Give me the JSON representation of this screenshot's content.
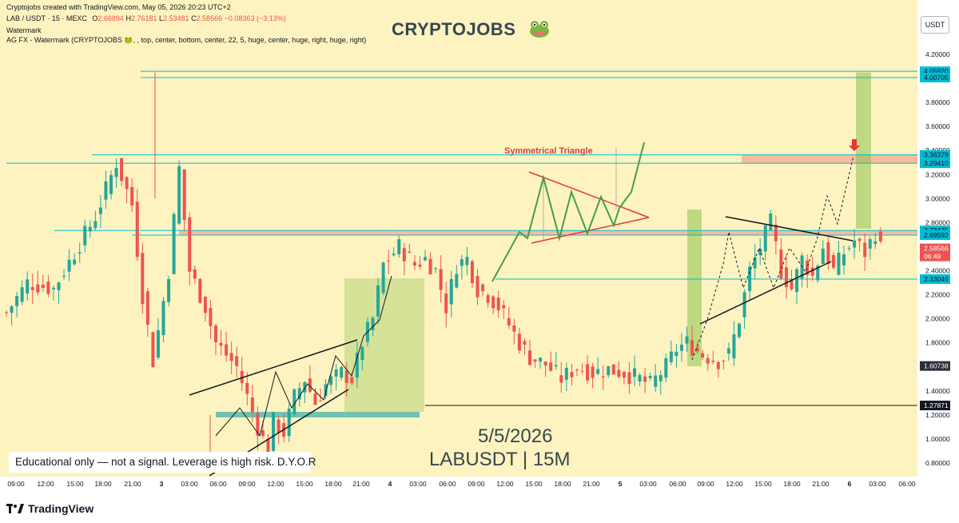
{
  "header": {
    "credit": "Cryptojobs created with TradingView.com, May 05, 2026 20:23 UTC+2",
    "symbol_line": "LAB / USDT · 15 · MEXC",
    "ohlc": {
      "o_label": "O",
      "o": "2.66894",
      "h_label": "H",
      "h": "2.76181",
      "l_label": "L",
      "l": "2.53481",
      "c_label": "C",
      "c": "2.58566",
      "change": "−0.08363 (−3.13%)"
    },
    "watermark_label": "Watermark",
    "indicator_line": "AG FX - Watermark (CRYPTOJOBS 🐸, , top, center, bottom, center, 22, 5, huge, center, huge, right, huge, right)",
    "brand_title": "CRYPTOJOBS",
    "currency": "USDT"
  },
  "annotations": {
    "pattern_label": "Symmetrical Triangle",
    "date": "5/5/2026",
    "pair_timeframe": "LABUSDT | 15M",
    "disclaimer": "Educational only — not a signal. Leverage is high risk. D.Y.O.R"
  },
  "footer": {
    "logo_text": "TradingView"
  },
  "colors": {
    "background": "#fdf3c0",
    "candle_up": "#26a69a",
    "candle_down": "#ef5350",
    "level_line": "#00bcd4",
    "zone_red": "#f8a890",
    "zone_green": "#8bc34a",
    "pattern_green": "#43a047",
    "pattern_red": "#e53935",
    "price_label": "#ef5350",
    "dark_label": "#2a2e39"
  },
  "chart_data": {
    "type": "candlestick",
    "symbol": "LAB / USDT",
    "timeframe": "15",
    "exchange": "MEXC",
    "ylim": [
      0.7,
      4.3
    ],
    "y_ticks": [
      "0.80000",
      "1.00000",
      "1.20000",
      "1.40000",
      "1.60000",
      "1.80000",
      "2.00000",
      "2.20000",
      "2.40000",
      "2.60000",
      "2.80000",
      "3.00000",
      "3.20000",
      "3.40000",
      "3.60000",
      "3.80000",
      "4.00000",
      "4.20000"
    ],
    "x_ticks": [
      "09:00",
      "12:00",
      "15:00",
      "18:00",
      "21:00",
      "3",
      "03:00",
      "06:00",
      "09:00",
      "12:00",
      "15:00",
      "18:00",
      "21:00",
      "4",
      "03:00",
      "06:00",
      "09:00",
      "12:00",
      "15:00",
      "18:00",
      "21:00",
      "5",
      "03:00",
      "06:00",
      "09:00",
      "12:00",
      "15:00",
      "18:00",
      "21:00",
      "6",
      "03:00",
      "06:00"
    ],
    "close_path": [
      {
        "t": 0,
        "p": 2.05
      },
      {
        "t": 4,
        "p": 2.3
      },
      {
        "t": 9,
        "p": 2.25
      },
      {
        "t": 13,
        "p": 2.55
      },
      {
        "t": 17,
        "p": 2.85
      },
      {
        "t": 21,
        "p": 3.3
      },
      {
        "t": 24,
        "p": 2.95
      },
      {
        "t": 26,
        "p": 2.2
      },
      {
        "t": 28,
        "p": 1.65
      },
      {
        "t": 29,
        "p": 1.9
      },
      {
        "t": 31,
        "p": 2.4
      },
      {
        "t": 33,
        "p": 3.25
      },
      {
        "t": 35,
        "p": 2.4
      },
      {
        "t": 38,
        "p": 2.1
      },
      {
        "t": 40,
        "p": 1.8
      },
      {
        "t": 42,
        "p": 1.7
      },
      {
        "t": 44,
        "p": 1.6
      },
      {
        "t": 46,
        "p": 1.35
      },
      {
        "t": 48,
        "p": 1.1
      },
      {
        "t": 50,
        "p": 0.9
      },
      {
        "t": 51,
        "p": 1.15
      },
      {
        "t": 53,
        "p": 1.05
      },
      {
        "t": 55,
        "p": 1.35
      },
      {
        "t": 57,
        "p": 1.5
      },
      {
        "t": 59,
        "p": 1.3
      },
      {
        "t": 61,
        "p": 1.45
      },
      {
        "t": 64,
        "p": 1.55
      },
      {
        "t": 66,
        "p": 1.5
      },
      {
        "t": 68,
        "p": 1.8
      },
      {
        "t": 70,
        "p": 2.0
      },
      {
        "t": 72,
        "p": 2.45
      },
      {
        "t": 75,
        "p": 2.6
      },
      {
        "t": 78,
        "p": 2.45
      },
      {
        "t": 80,
        "p": 2.5
      },
      {
        "t": 82,
        "p": 2.4
      },
      {
        "t": 84,
        "p": 2.1
      },
      {
        "t": 86,
        "p": 2.45
      },
      {
        "t": 88,
        "p": 2.5
      },
      {
        "t": 90,
        "p": 2.25
      },
      {
        "t": 92,
        "p": 2.2
      },
      {
        "t": 94,
        "p": 2.1
      },
      {
        "t": 96,
        "p": 1.95
      },
      {
        "t": 98,
        "p": 1.8
      },
      {
        "t": 100,
        "p": 1.68
      },
      {
        "t": 103,
        "p": 1.62
      },
      {
        "t": 106,
        "p": 1.5
      },
      {
        "t": 109,
        "p": 1.6
      },
      {
        "t": 112,
        "p": 1.55
      },
      {
        "t": 115,
        "p": 1.58
      },
      {
        "t": 118,
        "p": 1.55
      },
      {
        "t": 121,
        "p": 1.5
      },
      {
        "t": 123,
        "p": 1.45
      },
      {
        "t": 126,
        "p": 1.6
      },
      {
        "t": 128,
        "p": 1.75
      },
      {
        "t": 130,
        "p": 1.8
      },
      {
        "t": 133,
        "p": 1.7
      },
      {
        "t": 136,
        "p": 1.65
      },
      {
        "t": 138,
        "p": 1.7
      },
      {
        "t": 140,
        "p": 2.0
      },
      {
        "t": 142,
        "p": 2.4
      },
      {
        "t": 144,
        "p": 2.6
      },
      {
        "t": 146,
        "p": 2.8
      },
      {
        "t": 148,
        "p": 2.4
      },
      {
        "t": 150,
        "p": 2.25
      },
      {
        "t": 152,
        "p": 2.5
      },
      {
        "t": 154,
        "p": 2.35
      },
      {
        "t": 156,
        "p": 2.6
      },
      {
        "t": 158,
        "p": 2.4
      },
      {
        "t": 160,
        "p": 2.55
      },
      {
        "t": 162,
        "p": 2.65
      },
      {
        "t": 164,
        "p": 2.55
      },
      {
        "t": 166,
        "p": 2.72
      },
      {
        "t": 167,
        "p": 2.586
      }
    ],
    "horizontal_levels": [
      "4.05920",
      "4.00705",
      "3.36379",
      "3.29410",
      "2.73475",
      "2.69592",
      "2.33046",
      "1.60738",
      "1.27871"
    ],
    "zones": [
      {
        "kind": "resistance",
        "from": 3.294,
        "to": 3.364
      },
      {
        "kind": "support-resistance",
        "from": 2.696,
        "to": 2.735
      },
      {
        "kind": "target",
        "from": 2.75,
        "to": 4.05
      }
    ],
    "current_price": "2.58566",
    "countdown": "06:49",
    "pattern_label": "Symmetrical Triangle"
  }
}
